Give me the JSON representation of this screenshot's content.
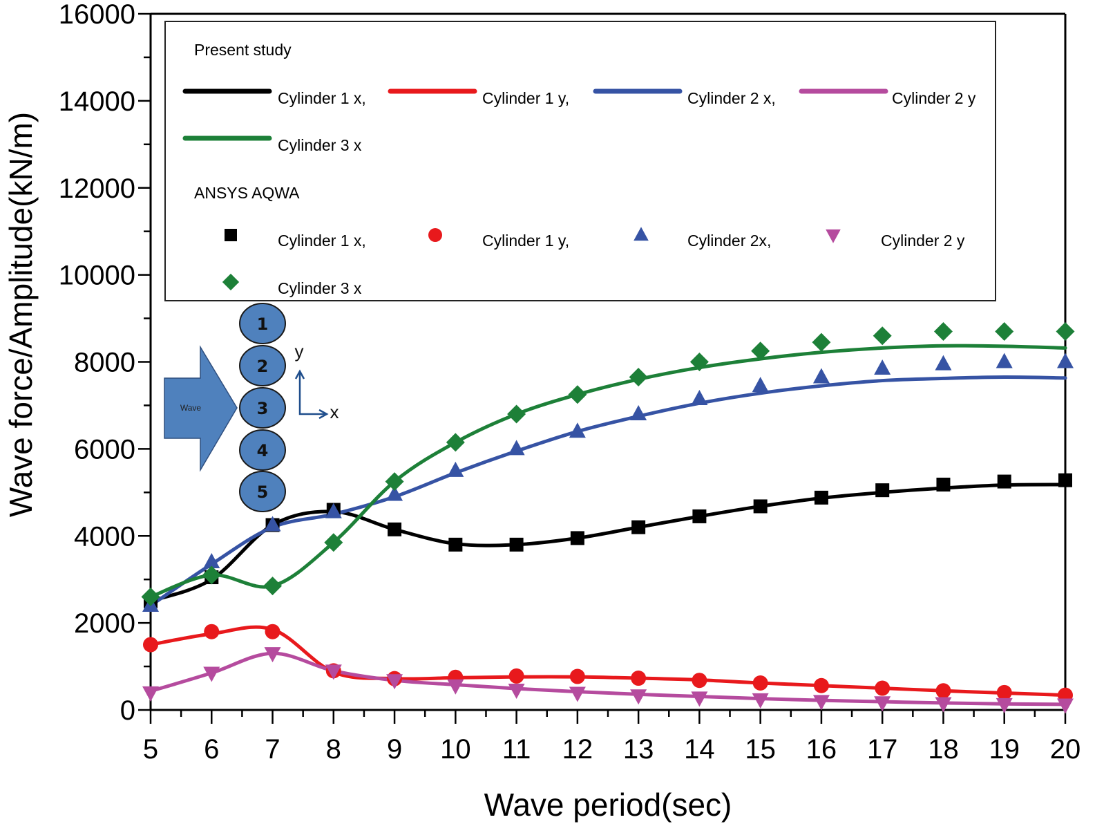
{
  "chart_data": {
    "type": "line",
    "title": "",
    "xlabel": "Wave period(sec)",
    "ylabel": "Wave force/Amplitude(kN/m)",
    "xlim": [
      5,
      20
    ],
    "ylim": [
      0,
      16000
    ],
    "x_ticks": [
      5,
      6,
      7,
      8,
      9,
      10,
      11,
      12,
      13,
      14,
      15,
      16,
      17,
      18,
      19,
      20
    ],
    "y_ticks": [
      0,
      2000,
      4000,
      6000,
      8000,
      10000,
      12000,
      14000,
      16000
    ],
    "grid": false,
    "x": [
      5,
      6,
      7,
      8,
      9,
      10,
      11,
      12,
      13,
      14,
      15,
      16,
      17,
      18,
      19,
      20
    ],
    "series": [
      {
        "name": "Cylinder 1 x",
        "group": "Present study",
        "kind": "line",
        "color": "#000000",
        "values": [
          2500,
          3000,
          4250,
          4560,
          4150,
          3820,
          3800,
          3950,
          4200,
          4450,
          4680,
          4870,
          5000,
          5100,
          5170,
          5180
        ]
      },
      {
        "name": "Cylinder 1 y",
        "group": "Present study",
        "kind": "line",
        "color": "#e8191c",
        "values": [
          1500,
          1750,
          1850,
          870,
          720,
          740,
          760,
          760,
          730,
          690,
          620,
          560,
          500,
          440,
          390,
          340
        ]
      },
      {
        "name": "Cylinder 2 x",
        "group": "Present study",
        "kind": "line",
        "color": "#3653a4",
        "values": [
          2400,
          3350,
          4200,
          4500,
          4900,
          5450,
          5950,
          6400,
          6750,
          7050,
          7280,
          7450,
          7570,
          7620,
          7650,
          7630
        ]
      },
      {
        "name": "Cylinder 2 y",
        "group": "Present study",
        "kind": "line",
        "color": "#b54b9e",
        "values": [
          430,
          850,
          1300,
          900,
          680,
          580,
          490,
          420,
          360,
          310,
          260,
          220,
          190,
          160,
          140,
          130
        ]
      },
      {
        "name": "Cylinder 3 x",
        "group": "Present study",
        "kind": "line",
        "color": "#1d8038",
        "values": [
          2600,
          3100,
          2850,
          3850,
          5250,
          6150,
          6800,
          7250,
          7600,
          7870,
          8070,
          8220,
          8320,
          8370,
          8360,
          8320
        ]
      },
      {
        "name": "Cylinder 1 x",
        "group": "ANSYS AQWA",
        "kind": "marker",
        "marker": "square",
        "color": "#000000",
        "values": [
          2500,
          3050,
          4250,
          4600,
          4150,
          3800,
          3800,
          3950,
          4200,
          4450,
          4680,
          4880,
          5050,
          5180,
          5250,
          5280
        ]
      },
      {
        "name": "Cylinder 1 y",
        "group": "ANSYS AQWA",
        "kind": "marker",
        "marker": "circle",
        "color": "#e8191c",
        "values": [
          1500,
          1800,
          1800,
          900,
          720,
          750,
          780,
          770,
          730,
          680,
          620,
          560,
          500,
          440,
          400,
          340
        ]
      },
      {
        "name": "Cylinder 2x",
        "group": "ANSYS AQWA",
        "kind": "marker",
        "marker": "triangle-up",
        "color": "#3653a4",
        "values": [
          2400,
          3400,
          4250,
          4550,
          4950,
          5500,
          6000,
          6400,
          6800,
          7150,
          7450,
          7650,
          7850,
          7950,
          8000,
          8000
        ]
      },
      {
        "name": "Cylinder 2 y",
        "group": "ANSYS AQWA",
        "kind": "marker",
        "marker": "triangle-down",
        "color": "#b54b9e",
        "values": [
          400,
          850,
          1300,
          900,
          680,
          560,
          460,
          390,
          330,
          280,
          240,
          200,
          170,
          150,
          130,
          120
        ]
      },
      {
        "name": "Cylinder 3 x",
        "group": "ANSYS AQWA",
        "kind": "marker",
        "marker": "diamond",
        "color": "#1d8038",
        "values": [
          2600,
          3100,
          2850,
          3850,
          5250,
          6150,
          6800,
          7250,
          7650,
          8000,
          8250,
          8450,
          8600,
          8700,
          8700,
          8700
        ]
      }
    ],
    "legend": {
      "placement": "top",
      "groups": [
        {
          "title": "Present study",
          "entries": [
            "Cylinder 1 x,",
            "Cylinder 1 y,",
            "Cylinder 2 x,",
            "Cylinder 2 y",
            "Cylinder 3 x"
          ]
        },
        {
          "title": "ANSYS AQWA",
          "entries": [
            "Cylinder 1 x,",
            "Cylinder 1 y,",
            "Cylinder 2x,",
            "Cylinder 2 y",
            "Cylinder 3 x"
          ]
        }
      ]
    },
    "inset": {
      "wave_label": "Wave",
      "cylinder_labels": [
        "1",
        "2",
        "3",
        "4",
        "5"
      ],
      "axis_labels": {
        "x": "x",
        "y": "y"
      },
      "fill_color": "#4f81bd",
      "arrow_color": "#1f4e8c"
    }
  }
}
